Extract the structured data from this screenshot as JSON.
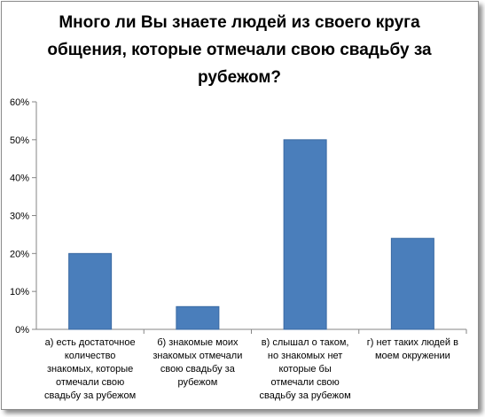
{
  "chart_data": {
    "type": "bar",
    "title": "Много ли Вы знаете людей из своего круга общения, которые отмечали свою свадьбу за рубежом?",
    "categories": [
      [
        "а) есть достаточное",
        "количество",
        "знакомых, которые",
        "отмечали свою",
        "свадьбу за рубежом"
      ],
      [
        "б) знакомые моих",
        "знакомых отмечали",
        "свою свадьбу за",
        "рубежом"
      ],
      [
        "в) слышал о таком,",
        "но знакомых нет",
        "которые бы",
        "отмечали свою",
        "свадьбу за рубежом"
      ],
      [
        "г) нет таких людей в",
        "моем окружении"
      ]
    ],
    "values": [
      20,
      6,
      50,
      24
    ],
    "unit": "%",
    "ylim": [
      0,
      60
    ],
    "yticks": [
      "0%",
      "10%",
      "20%",
      "30%",
      "40%",
      "50%",
      "60%"
    ],
    "xlabel": "",
    "ylabel": "",
    "grid": false,
    "legend": "none",
    "colors": {
      "bar": "#4a7ebb",
      "bar_edge": "#3a6aa3",
      "axis": "#868686"
    }
  }
}
